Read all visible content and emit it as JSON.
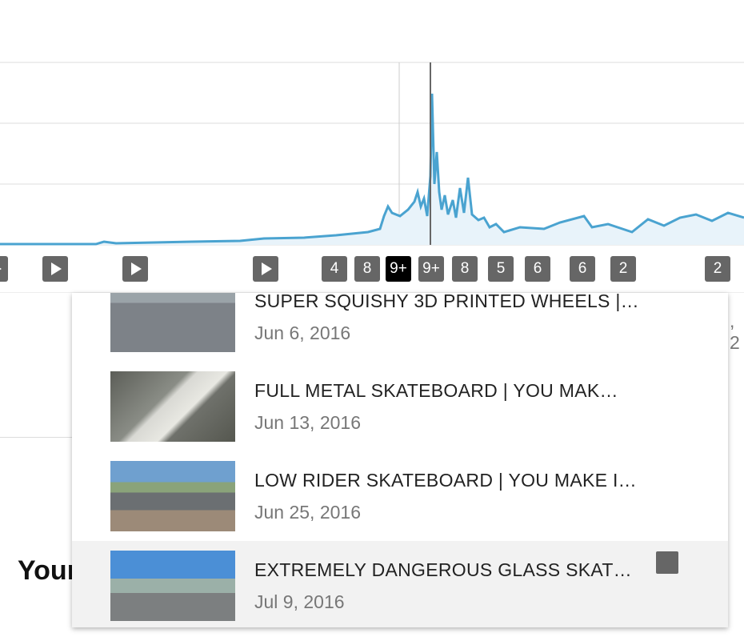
{
  "badges": [
    "4",
    "8",
    "9+",
    "9+",
    "8",
    "5",
    "6",
    "6",
    "2",
    "2"
  ],
  "selected_badge": 2,
  "background": {
    "heading": "Your",
    "right_text": ", 2"
  },
  "videos": [
    {
      "title": "SUPER SQUISHY 3D PRINTED WHEELS |…",
      "date": "Jun 6, 2016"
    },
    {
      "title": "FULL METAL SKATEBOARD | YOU MAK…",
      "date": "Jun 13, 2016"
    },
    {
      "title": "LOW RIDER SKATEBOARD | YOU MAKE I…",
      "date": "Jun 25, 2016"
    },
    {
      "title": "EXTREMELY DANGEROUS GLASS SKAT…",
      "date": "Jul 9, 2016"
    }
  ],
  "highlighted_video": 3
}
